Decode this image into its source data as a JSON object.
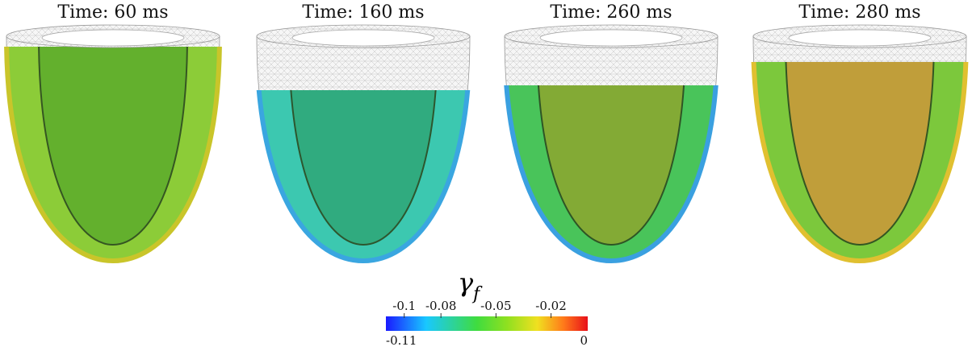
{
  "panels": [
    {
      "title": "Time: 60 ms"
    },
    {
      "title": "Time: 160 ms"
    },
    {
      "title": "Time: 260 ms"
    },
    {
      "title": "Time: 280 ms"
    }
  ],
  "colorbar": {
    "symbol": "γ",
    "subscript": "f",
    "lim": [
      -0.11,
      0
    ],
    "ticks": [
      -0.1,
      -0.08,
      -0.05,
      -0.02
    ]
  }
}
